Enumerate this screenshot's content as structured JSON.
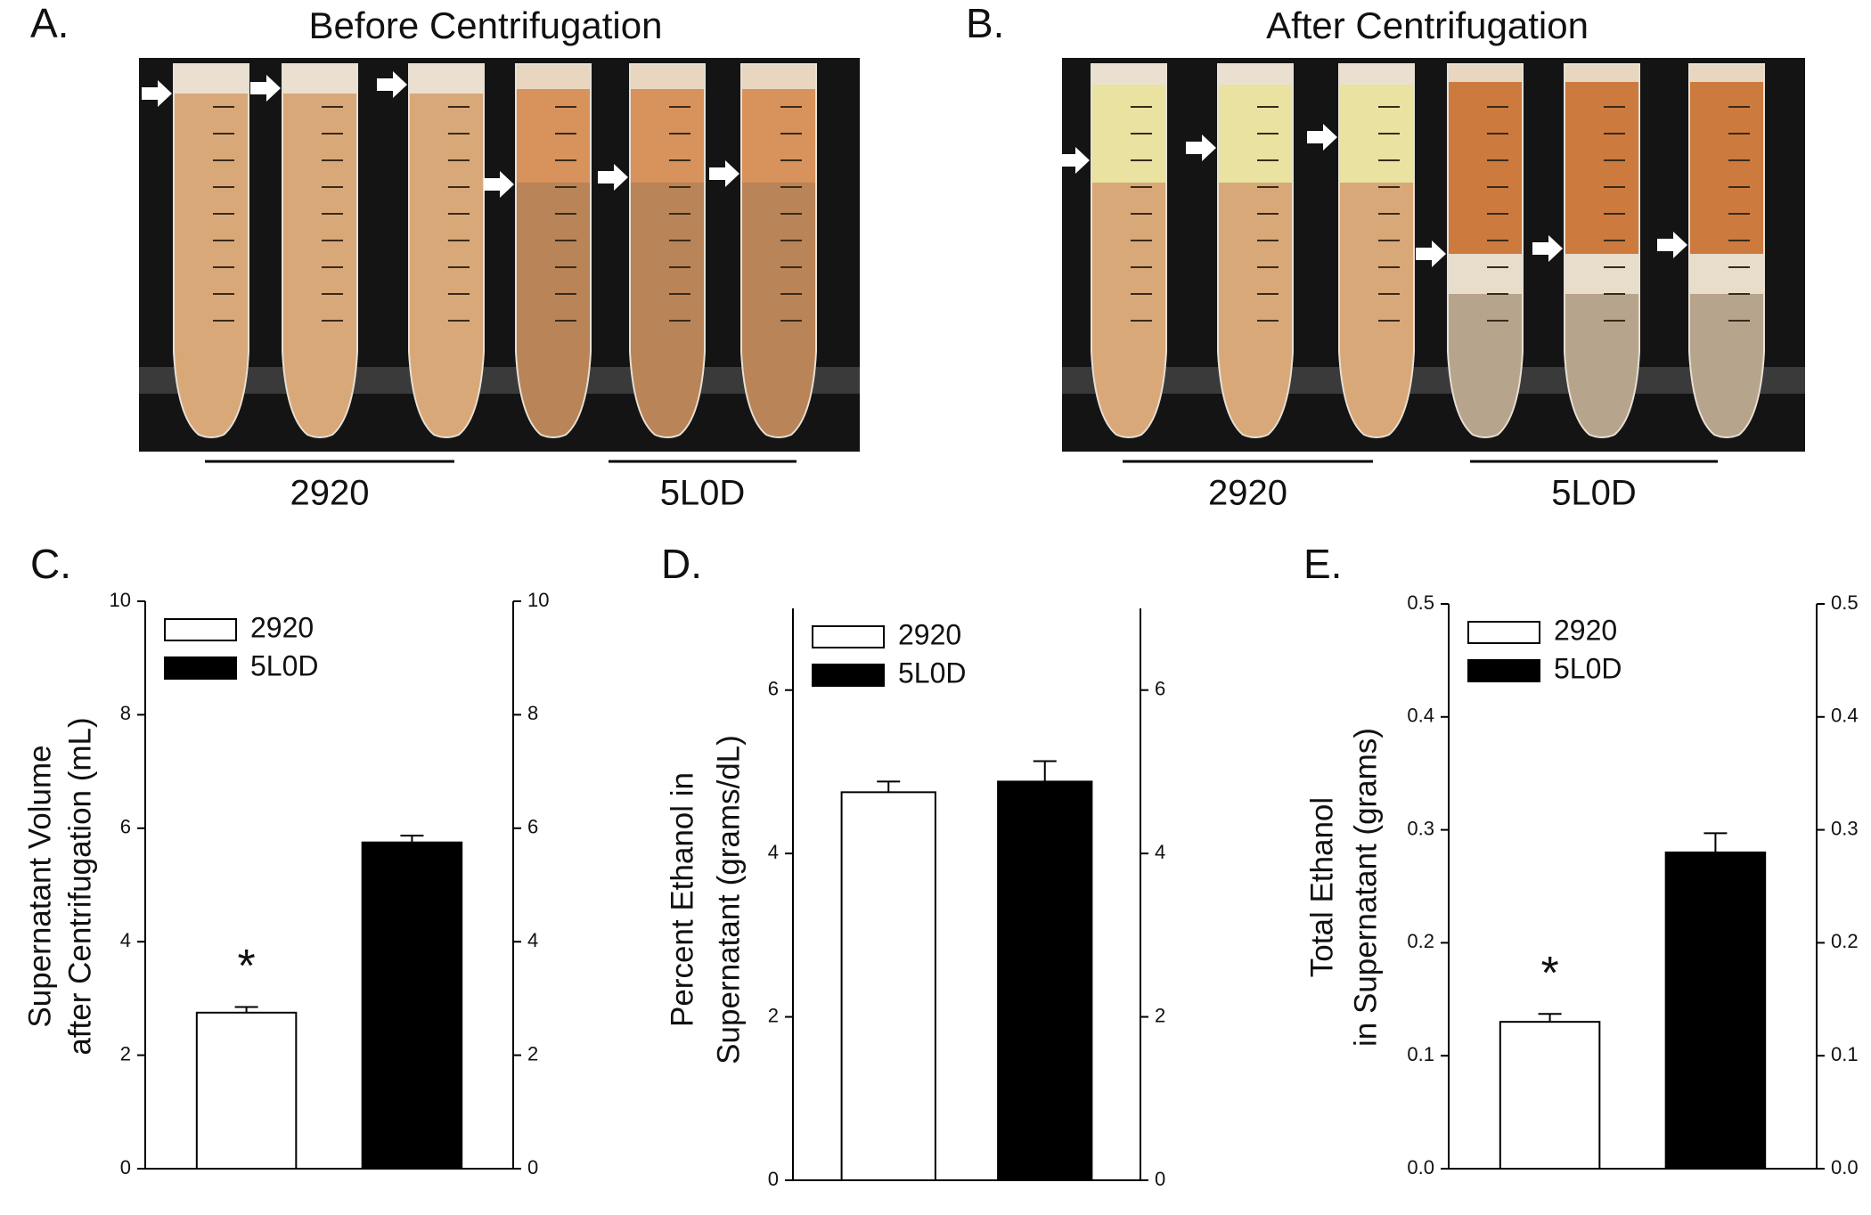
{
  "photos": [
    {
      "label": "A.",
      "title": "Before Centrifugation",
      "groups": [
        "2920",
        "5L0D"
      ]
    },
    {
      "label": "B.",
      "title": "After Centrifugation",
      "groups": [
        "2920",
        "5L0D"
      ]
    }
  ],
  "chart_data": [
    {
      "type": "bar",
      "panel_label": "C.",
      "ylabel": [
        "Supernatant Volume",
        "after Centrifugation (mL)"
      ],
      "categories": [
        null
      ],
      "series": [
        {
          "name": "2920",
          "color": "#ffffff",
          "values": [
            2.75
          ],
          "errors": [
            0.1
          ]
        },
        {
          "name": "5L0D",
          "color": "#000000",
          "values": [
            5.75
          ],
          "errors": [
            0.12
          ]
        }
      ],
      "annotation": "*",
      "ylim": [
        0,
        10
      ],
      "yticks": [
        0,
        2,
        4,
        6,
        8,
        10
      ],
      "y2lim": [
        0,
        10
      ],
      "y2ticks": [
        0,
        2,
        4,
        6,
        8,
        10
      ],
      "legend": "upper left"
    },
    {
      "type": "bar",
      "panel_label": "D.",
      "ylabel": [
        "Percent Ethanol in",
        "Supernatant (grams/dL)"
      ],
      "categories": [
        null
      ],
      "series": [
        {
          "name": "2920",
          "color": "#ffffff",
          "values": [
            4.75
          ],
          "errors": [
            0.13
          ]
        },
        {
          "name": "5L0D",
          "color": "#000000",
          "values": [
            4.88
          ],
          "errors": [
            0.25
          ]
        }
      ],
      "ylim": [
        0,
        7
      ],
      "yticks": [
        0,
        2,
        4,
        6
      ],
      "y2lim": [
        0,
        7
      ],
      "y2ticks": [
        0,
        2,
        4,
        6
      ],
      "legend": "upper left"
    },
    {
      "type": "bar",
      "panel_label": "E.",
      "ylabel": [
        "Total Ethanol",
        "in Supernatant (grams)"
      ],
      "categories": [
        null
      ],
      "series": [
        {
          "name": "2920",
          "color": "#ffffff",
          "values": [
            0.13
          ],
          "errors": [
            0.007
          ]
        },
        {
          "name": "5L0D",
          "color": "#000000",
          "values": [
            0.28
          ],
          "errors": [
            0.017
          ]
        }
      ],
      "annotation": "*",
      "ylim": [
        0,
        0.5
      ],
      "yticks": [
        {
          "value": 0,
          "label": "0.0"
        },
        0.1,
        0.2,
        0.3,
        0.4,
        0.5
      ],
      "y2lim": [
        0,
        0.5
      ],
      "y2ticks": [
        {
          "value": 0,
          "label": "0.0"
        },
        0.1,
        0.2,
        0.3,
        0.4,
        0.5
      ],
      "legend": "upper left"
    }
  ]
}
